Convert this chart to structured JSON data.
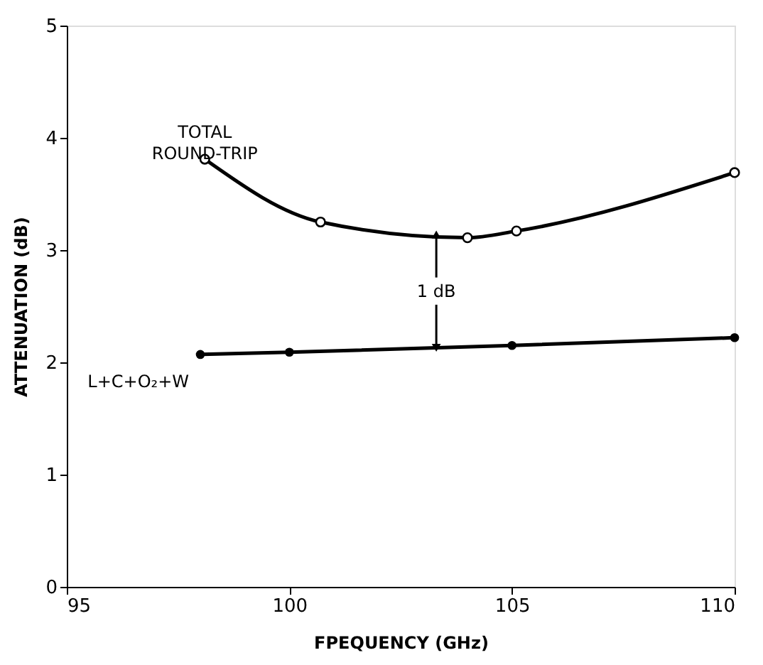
{
  "chart_data": {
    "type": "line",
    "xlabel": "FPEQUENCY (GHz)",
    "ylabel": "ATTENUATION (dB)",
    "xlim": [
      95,
      110
    ],
    "xticks": [
      95,
      100,
      105,
      110
    ],
    "ylim": [
      0,
      5
    ],
    "yticks": [
      0,
      1,
      2,
      3,
      4,
      5
    ],
    "grid": false,
    "legend": false,
    "line_style": "solid",
    "series": [
      {
        "name": "TOTAL ROUND-TRIP",
        "color": "#000000",
        "marker": "circle",
        "x": [
          98.1,
          100.7,
          104.0,
          105.1,
          110.0
        ],
        "values": [
          3.81,
          3.25,
          3.11,
          3.17,
          3.69
        ]
      },
      {
        "name": "L+C+O₂+W",
        "color": "#000000",
        "marker": "circle",
        "x": [
          98.0,
          100.0,
          105.0,
          110.0
        ],
        "values": [
          2.07,
          2.09,
          2.15,
          2.22
        ]
      }
    ],
    "annotations": [
      {
        "text": "1 dB",
        "x": 103.3,
        "y": 3.13
      }
    ]
  }
}
